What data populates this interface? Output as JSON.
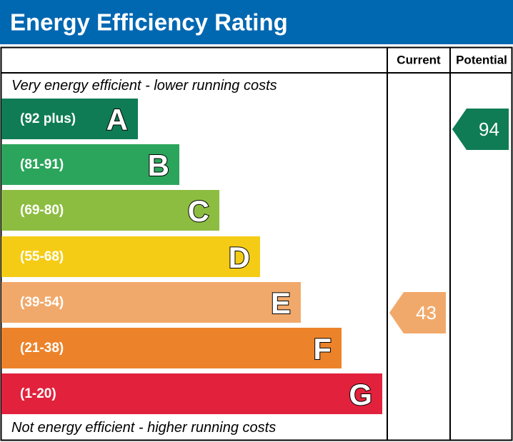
{
  "header": {
    "title": "Energy Efficiency Rating"
  },
  "table": {
    "columns": [
      "Current",
      "Potential"
    ],
    "top_note": "Very energy efficient - lower running costs",
    "bottom_note": "Not energy efficient - higher running costs",
    "bands": [
      {
        "range": "(92 plus)",
        "letter": "A",
        "color": "#0f7c55"
      },
      {
        "range": "(81-91)",
        "letter": "B",
        "color": "#2ba55b"
      },
      {
        "range": "(69-80)",
        "letter": "C",
        "color": "#8dbd40"
      },
      {
        "range": "(55-68)",
        "letter": "D",
        "color": "#f5cc15"
      },
      {
        "range": "(39-54)",
        "letter": "E",
        "color": "#f1a96b"
      },
      {
        "range": "(21-38)",
        "letter": "F",
        "color": "#ec832a"
      },
      {
        "range": "(1-20)",
        "letter": "G",
        "color": "#e2213c"
      }
    ],
    "current": 43,
    "potential": 94
  }
}
